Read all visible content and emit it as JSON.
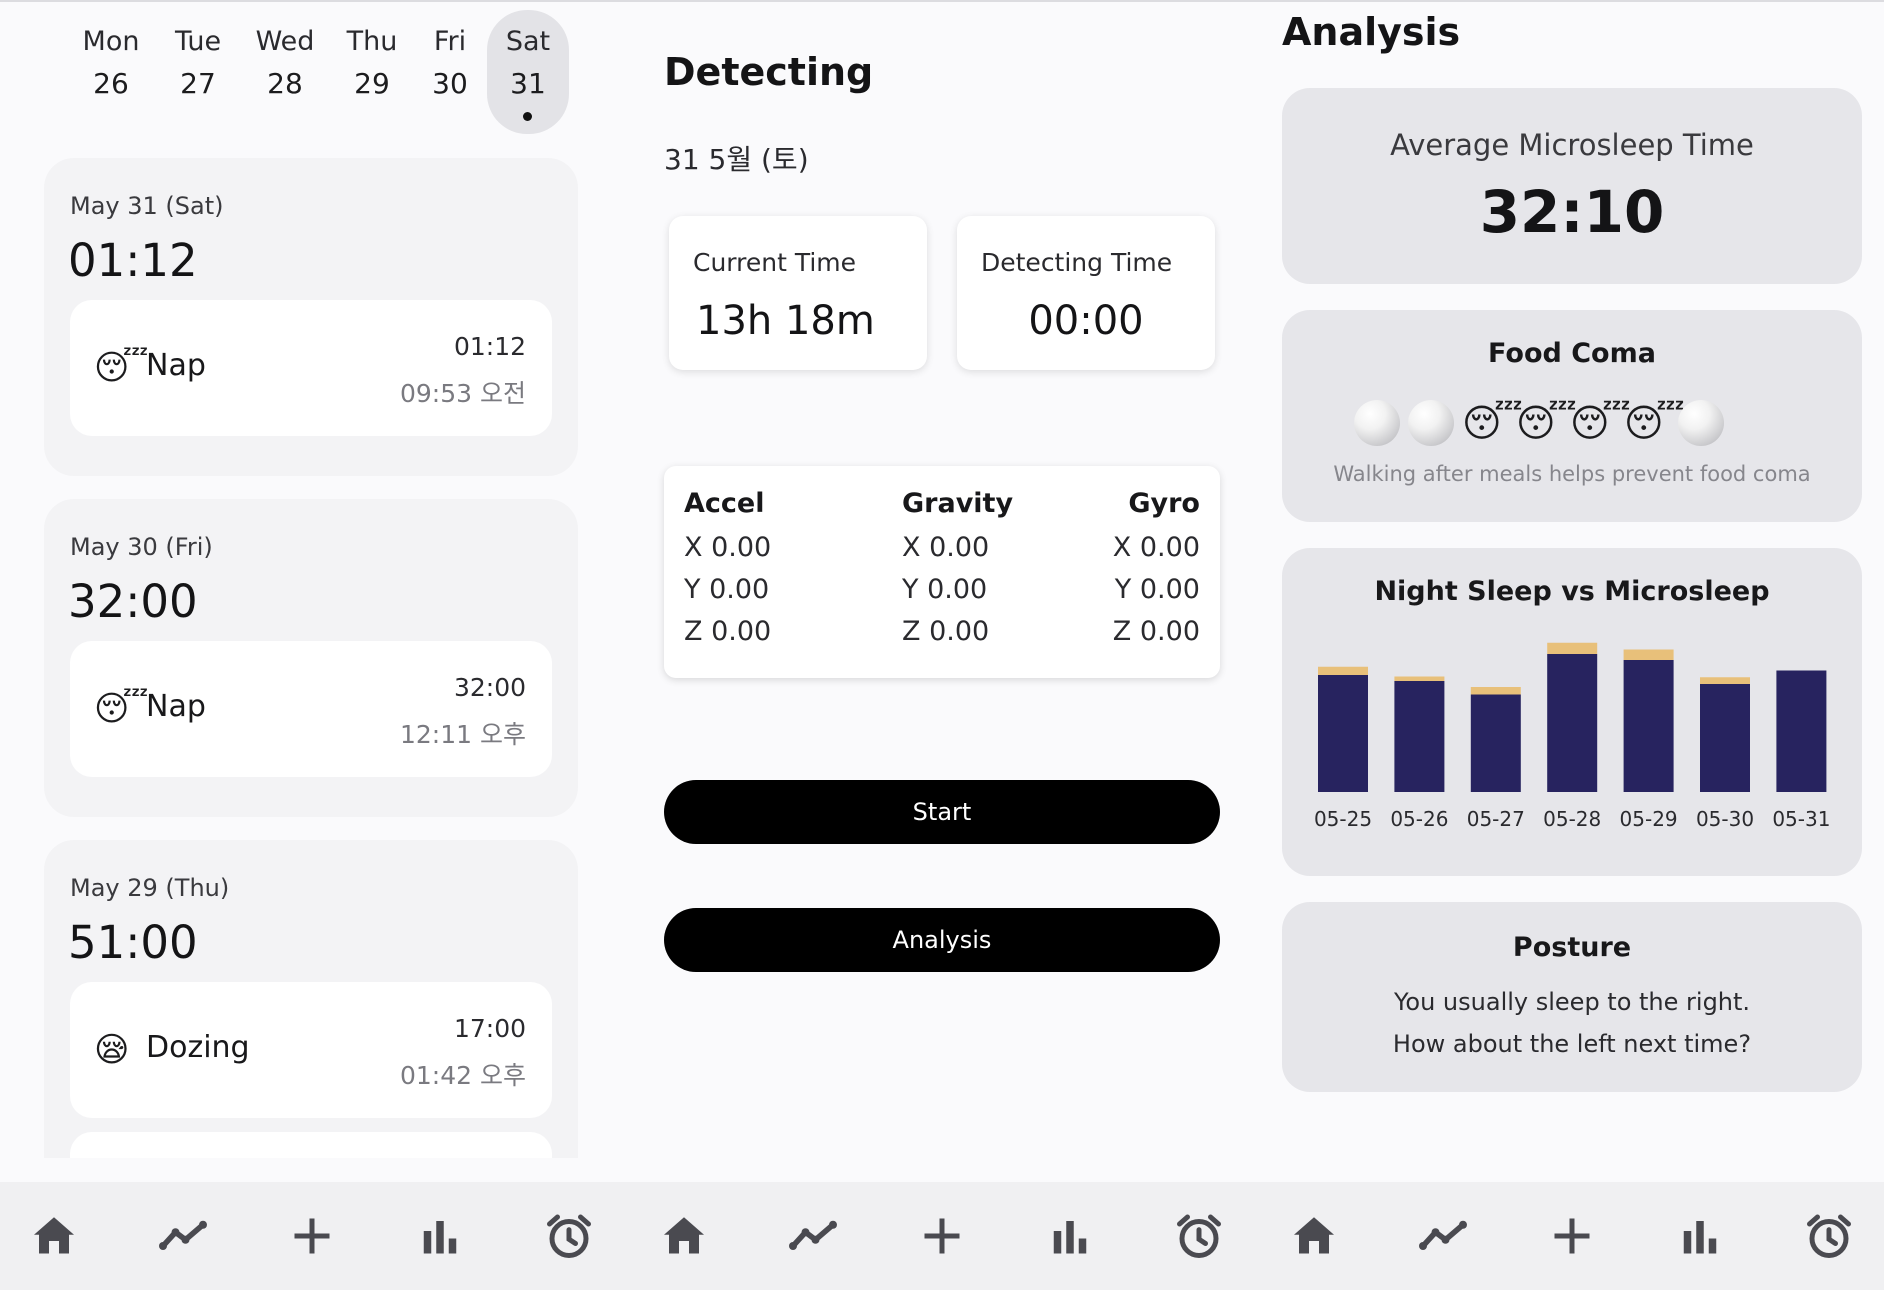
{
  "calendar": {
    "days": [
      {
        "name": "Mon",
        "date": "26"
      },
      {
        "name": "Tue",
        "date": "27"
      },
      {
        "name": "Wed",
        "date": "28"
      },
      {
        "name": "Thu",
        "date": "29"
      },
      {
        "name": "Fri",
        "date": "30"
      },
      {
        "name": "Sat",
        "date": "31"
      }
    ]
  },
  "records": [
    {
      "date": "May 31 (Sat)",
      "total": "01:12",
      "entry": {
        "emoji": "😴",
        "label": "Nap",
        "duration": "01:12",
        "time": "09:53 오전"
      }
    },
    {
      "date": "May 30 (Fri)",
      "total": "32:00",
      "entry": {
        "emoji": "😴",
        "label": "Nap",
        "duration": "32:00",
        "time": "12:11 오후"
      }
    },
    {
      "date": "May 29 (Thu)",
      "total": "51:00",
      "entry": {
        "emoji": "😪",
        "label": "Dozing",
        "duration": "17:00",
        "time": "01:42 오후"
      }
    }
  ],
  "detecting": {
    "title": "Detecting",
    "date": "31 5월 (토)",
    "current_time_label": "Current Time",
    "current_time_value": "13h 18m",
    "detecting_time_label": "Detecting Time",
    "detecting_time_value": "00:00",
    "sensors": [
      {
        "name": "Accel",
        "x": "X 0.00",
        "y": "Y 0.00",
        "z": "Z 0.00"
      },
      {
        "name": "Gravity",
        "x": "X 0.00",
        "y": "Y 0.00",
        "z": "Z 0.00"
      },
      {
        "name": "Gyro",
        "x": "X 0.00",
        "y": "Y 0.00",
        "z": "Z 0.00"
      }
    ],
    "start_label": "Start",
    "analysis_label": "Analysis"
  },
  "analysis": {
    "title": "Analysis",
    "avg_label": "Average Microsleep Time",
    "avg_value": "32:10",
    "food_coma_title": "Food Coma",
    "food_coma_pattern": [
      "none",
      "none",
      "sleep",
      "sleep",
      "sleep",
      "sleep",
      "none"
    ],
    "food_coma_emoji": "😴",
    "food_coma_tip": "Walking after meals helps prevent food coma",
    "chart_title": "Night Sleep vs Microsleep",
    "posture_title": "Posture",
    "posture_line1": "You usually sleep to the right.",
    "posture_line2": "How about the left next time?"
  },
  "chart_data": {
    "type": "bar",
    "stacked": true,
    "title": "Night Sleep vs Microsleep",
    "categories": [
      "05-25",
      "05-26",
      "05-27",
      "05-28",
      "05-29",
      "05-30",
      "05-31"
    ],
    "series": [
      {
        "values": [
          7.8,
          7.4,
          6.5,
          9.2,
          8.8,
          7.2,
          8.1
        ],
        "color": "#27235f"
      },
      {
        "values": [
          0.55,
          0.3,
          0.5,
          0.75,
          0.7,
          0.45,
          0
        ],
        "color": "#e8c07a"
      }
    ],
    "ylim": [
      0,
      10
    ]
  },
  "nav": {
    "icons": [
      "home-icon",
      "trend-icon",
      "plus-icon",
      "bar-chart-icon",
      "alarm-icon"
    ]
  },
  "colors": {
    "background": "#fafafc",
    "card": "#f3f3f5",
    "analysis_card": "#e6e6ea",
    "button": "#000000",
    "bar_night": "#27235f",
    "bar_micro": "#e8c07a"
  }
}
